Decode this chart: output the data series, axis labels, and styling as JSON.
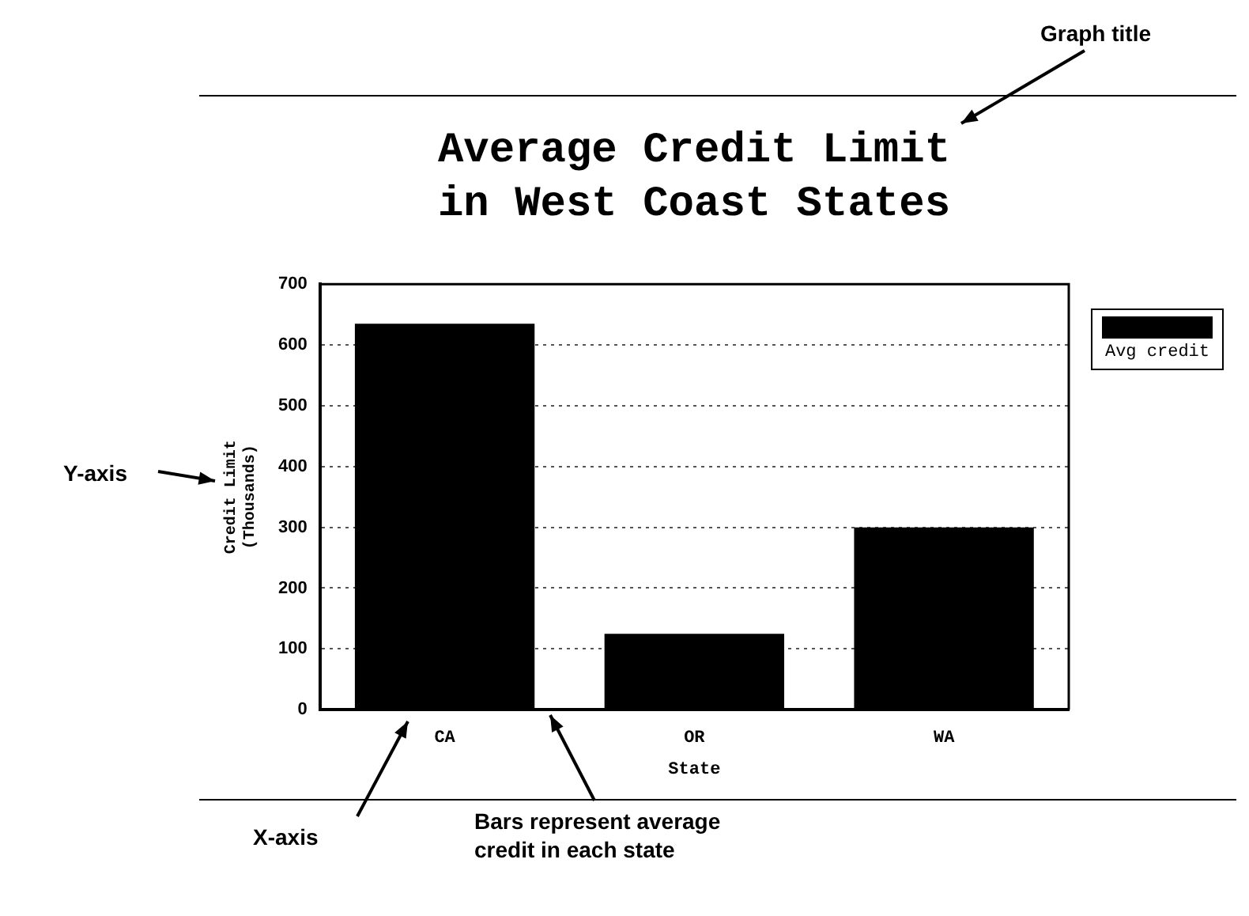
{
  "chart_data": {
    "type": "bar",
    "title": "Average Credit Limit\nin West Coast States",
    "xlabel": "State",
    "ylabel": "Credit Limit\n(Thousands)",
    "categories": [
      "CA",
      "OR",
      "WA"
    ],
    "series": [
      {
        "name": "Avg credit",
        "color": "#000000",
        "values": [
          635,
          125,
          300
        ]
      }
    ],
    "ylim": [
      0,
      700
    ],
    "yticks": [
      0,
      100,
      200,
      300,
      400,
      500,
      600,
      700
    ],
    "grid": "y",
    "legend": "top right",
    "annotations": [
      "Graph title",
      "Y-axis",
      "X-axis",
      "Bars represent average\ncredit in each state"
    ]
  }
}
